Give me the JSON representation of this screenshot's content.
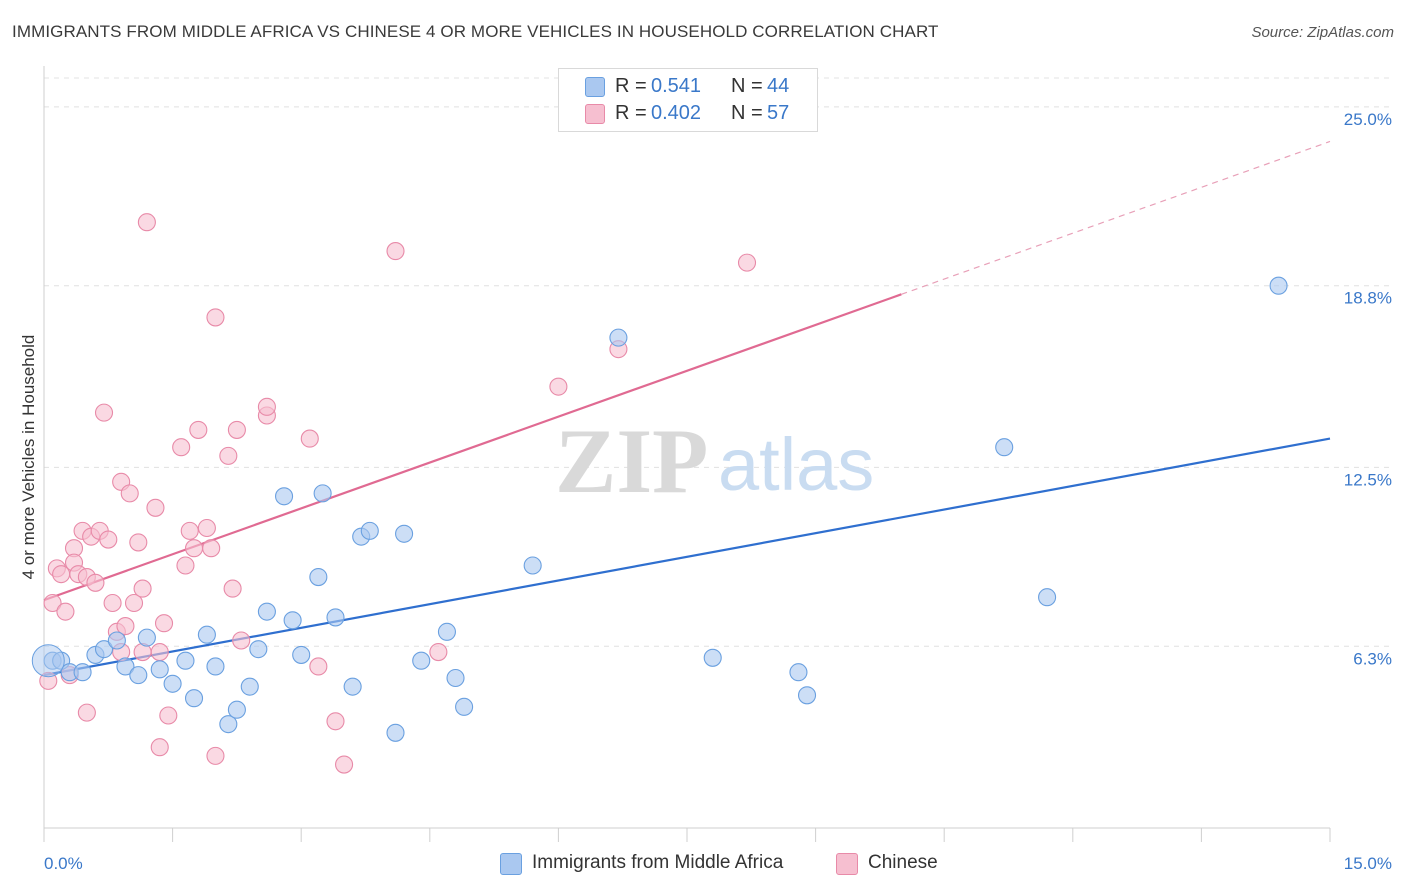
{
  "title": "IMMIGRANTS FROM MIDDLE AFRICA VS CHINESE 4 OR MORE VEHICLES IN HOUSEHOLD CORRELATION CHART",
  "source": "Source: ZipAtlas.com",
  "watermark": {
    "zip": "ZIP",
    "atlas": "atlas"
  },
  "legend": {
    "r_label": "R =",
    "n_label": "N =",
    "rows": [
      {
        "series": "Immigrants from Middle Africa",
        "r": "0.541",
        "n": "44"
      },
      {
        "series": "Chinese",
        "r": "0.402",
        "n": "57"
      }
    ]
  },
  "chart_data": {
    "type": "scatter",
    "title": "IMMIGRANTS FROM MIDDLE AFRICA VS CHINESE 4 OR MORE VEHICLES IN HOUSEHOLD CORRELATION CHART",
    "xlabel": "",
    "ylabel": "4 or more Vehicles in Household",
    "xlim": [
      0,
      15
    ],
    "ylim": [
      0,
      26
    ],
    "x_tick_labels": [
      "0.0%",
      "15.0%"
    ],
    "y_ticks": [
      6.3,
      12.5,
      18.8,
      25.0
    ],
    "y_tick_labels": [
      "6.3%",
      "12.5%",
      "18.8%",
      "25.0%"
    ],
    "grid": "horizontal dashed",
    "legend_position": "top-center",
    "series": [
      {
        "name": "Immigrants from Middle Africa",
        "color": "#6aa0e0",
        "fill": "#aac8f0",
        "trend": {
          "x": [
            0,
            15
          ],
          "y": [
            5.3,
            13.5
          ],
          "color": "#2f6fcf"
        },
        "points": [
          [
            0.1,
            5.8
          ],
          [
            0.2,
            5.8
          ],
          [
            0.3,
            5.4
          ],
          [
            0.45,
            5.4
          ],
          [
            0.6,
            6.0
          ],
          [
            0.7,
            6.2
          ],
          [
            0.85,
            6.5
          ],
          [
            0.95,
            5.6
          ],
          [
            1.1,
            5.3
          ],
          [
            1.2,
            6.6
          ],
          [
            1.35,
            5.5
          ],
          [
            1.5,
            5.0
          ],
          [
            1.65,
            5.8
          ],
          [
            1.75,
            4.5
          ],
          [
            1.9,
            6.7
          ],
          [
            2.0,
            5.6
          ],
          [
            2.15,
            3.6
          ],
          [
            2.25,
            4.1
          ],
          [
            2.4,
            4.9
          ],
          [
            2.5,
            6.2
          ],
          [
            2.6,
            7.5
          ],
          [
            2.8,
            11.5
          ],
          [
            2.9,
            7.2
          ],
          [
            3.0,
            6.0
          ],
          [
            3.2,
            8.7
          ],
          [
            3.25,
            11.6
          ],
          [
            3.4,
            7.3
          ],
          [
            3.6,
            4.9
          ],
          [
            3.7,
            10.1
          ],
          [
            3.8,
            10.3
          ],
          [
            4.1,
            3.3
          ],
          [
            4.2,
            10.2
          ],
          [
            4.4,
            5.8
          ],
          [
            4.7,
            6.8
          ],
          [
            4.8,
            5.2
          ],
          [
            4.9,
            4.2
          ],
          [
            5.7,
            9.1
          ],
          [
            6.7,
            17.0
          ],
          [
            7.8,
            5.9
          ],
          [
            8.8,
            5.4
          ],
          [
            8.9,
            4.6
          ],
          [
            11.2,
            13.2
          ],
          [
            11.7,
            8.0
          ],
          [
            14.4,
            18.8
          ]
        ]
      },
      {
        "name": "Chinese",
        "color": "#e88aa8",
        "fill": "#f6bfd0",
        "trend": {
          "x": [
            0,
            10
          ],
          "y": [
            7.9,
            18.5
          ],
          "color": "#e06a92"
        },
        "trend_dashed": {
          "x": [
            10,
            15
          ],
          "y": [
            18.5,
            23.8
          ],
          "color": "#e8a0b8"
        },
        "points": [
          [
            0.05,
            5.1
          ],
          [
            0.1,
            7.8
          ],
          [
            0.15,
            9.0
          ],
          [
            0.2,
            8.8
          ],
          [
            0.25,
            7.5
          ],
          [
            0.3,
            5.3
          ],
          [
            0.35,
            9.7
          ],
          [
            0.35,
            9.2
          ],
          [
            0.4,
            8.8
          ],
          [
            0.45,
            10.3
          ],
          [
            0.5,
            8.7
          ],
          [
            0.5,
            4.0
          ],
          [
            0.55,
            10.1
          ],
          [
            0.6,
            8.5
          ],
          [
            0.65,
            10.3
          ],
          [
            0.7,
            14.4
          ],
          [
            0.75,
            10.0
          ],
          [
            0.8,
            7.8
          ],
          [
            0.85,
            6.8
          ],
          [
            0.9,
            12.0
          ],
          [
            0.9,
            6.1
          ],
          [
            0.95,
            7.0
          ],
          [
            1.0,
            11.6
          ],
          [
            1.05,
            7.8
          ],
          [
            1.1,
            9.9
          ],
          [
            1.15,
            6.1
          ],
          [
            1.15,
            8.3
          ],
          [
            1.2,
            21.0
          ],
          [
            1.3,
            11.1
          ],
          [
            1.35,
            6.1
          ],
          [
            1.35,
            2.8
          ],
          [
            1.4,
            7.1
          ],
          [
            1.45,
            3.9
          ],
          [
            1.6,
            13.2
          ],
          [
            1.65,
            9.1
          ],
          [
            1.7,
            10.3
          ],
          [
            1.75,
            9.7
          ],
          [
            1.8,
            13.8
          ],
          [
            1.9,
            10.4
          ],
          [
            1.95,
            9.7
          ],
          [
            2.0,
            2.5
          ],
          [
            2.0,
            17.7
          ],
          [
            2.15,
            12.9
          ],
          [
            2.2,
            8.3
          ],
          [
            2.25,
            13.8
          ],
          [
            2.3,
            6.5
          ],
          [
            2.6,
            14.3
          ],
          [
            2.6,
            14.6
          ],
          [
            3.1,
            13.5
          ],
          [
            3.2,
            5.6
          ],
          [
            3.4,
            3.7
          ],
          [
            3.5,
            2.2
          ],
          [
            4.1,
            20.0
          ],
          [
            4.6,
            6.1
          ],
          [
            6.0,
            15.3
          ],
          [
            6.7,
            16.6
          ],
          [
            8.2,
            19.6
          ]
        ]
      }
    ]
  }
}
